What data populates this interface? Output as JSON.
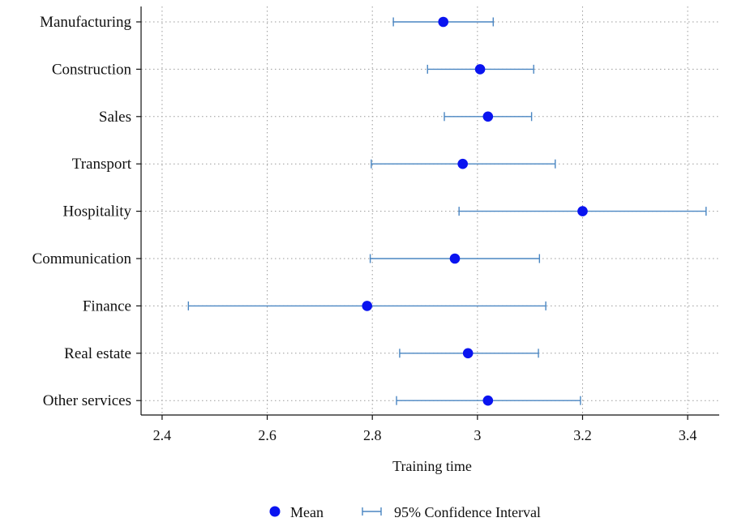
{
  "chart_data": {
    "type": "scatter",
    "categories": [
      "Manufacturing",
      "Construction",
      "Sales",
      "Transport",
      "Hospitality",
      "Communication",
      "Finance",
      "Real estate",
      "Other services"
    ],
    "series": [
      {
        "name": "Mean",
        "values": [
          2.935,
          3.005,
          3.02,
          2.972,
          3.2,
          2.957,
          2.79,
          2.982,
          3.02
        ]
      },
      {
        "name": "95% Confidence Interval",
        "lower": [
          2.84,
          2.905,
          2.937,
          2.798,
          2.965,
          2.796,
          2.45,
          2.852,
          2.846
        ],
        "upper": [
          3.03,
          3.107,
          3.103,
          3.148,
          3.435,
          3.118,
          3.13,
          3.116,
          3.196
        ]
      }
    ],
    "xlabel": "Training time",
    "ylabel": "",
    "xlim": [
      2.36,
      3.46
    ],
    "xticks": [
      "2.4",
      "2.6",
      "2.8",
      "3",
      "3.2",
      "3.4"
    ],
    "grid": true,
    "legend_position": "bottom",
    "colors": {
      "mean": "#0a14f0",
      "ci": "#4a86c2",
      "grid": "#9a9a9a",
      "axis": "#111111"
    }
  }
}
